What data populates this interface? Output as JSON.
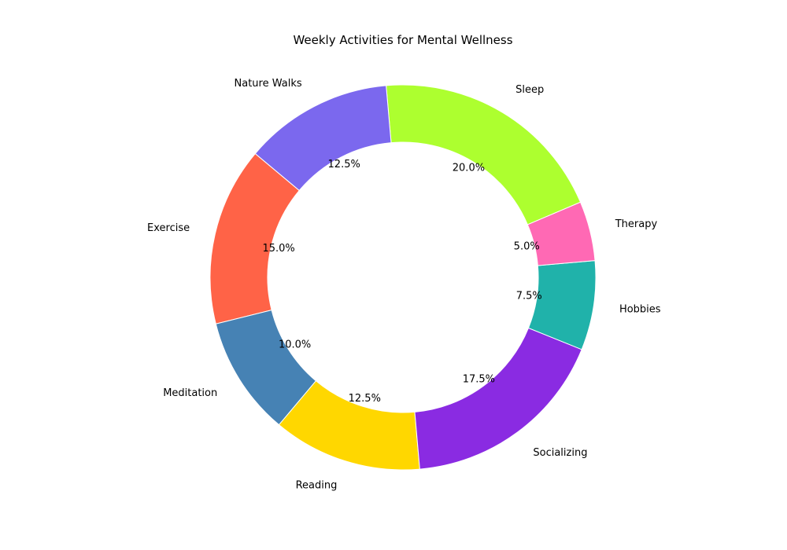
{
  "chart_data": {
    "type": "pie",
    "variant": "donut",
    "title": "Weekly Activities for Mental Wellness",
    "categories": [
      "Exercise",
      "Meditation",
      "Reading",
      "Socializing",
      "Hobbies",
      "Therapy",
      "Sleep",
      "Nature Walks"
    ],
    "values": [
      15.0,
      10.0,
      12.5,
      17.5,
      7.5,
      5.0,
      20.0,
      12.5
    ],
    "percent_labels": [
      "15.0%",
      "10.0%",
      "12.5%",
      "17.5%",
      "7.5%",
      "5.0%",
      "20.0%",
      "12.5%"
    ],
    "colors": [
      "#FF6347",
      "#4682B4",
      "#FFD700",
      "#8A2BE2",
      "#20B2AA",
      "#FF69B4",
      "#ADFF2F",
      "#7B68EE"
    ],
    "start_angle_deg": 140,
    "direction": "counterclockwise",
    "legend": "none"
  }
}
